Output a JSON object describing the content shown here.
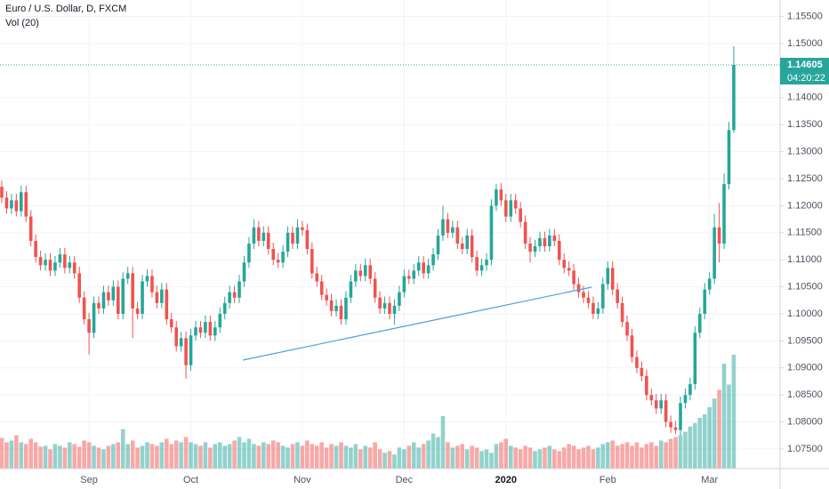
{
  "chart_data": {
    "type": "candlestick",
    "title": "Euro / U.S. Dollar, D, FXCM",
    "indicator": "Vol (20)",
    "countdown": "04:20:22",
    "last_price": 1.14605,
    "up_color": "#26a69a",
    "down_color": "#ef5350",
    "grid": true,
    "ylim": [
      1.07138,
      1.15806
    ],
    "yticks": [
      {
        "value": 1.075,
        "label": "1.07500"
      },
      {
        "value": 1.08,
        "label": "1.08000"
      },
      {
        "value": 1.085,
        "label": "1.08500"
      },
      {
        "value": 1.09,
        "label": "1.09000"
      },
      {
        "value": 1.095,
        "label": "1.09500"
      },
      {
        "value": 1.1,
        "label": "1.10000"
      },
      {
        "value": 1.105,
        "label": "1.10500"
      },
      {
        "value": 1.11,
        "label": "1.11000"
      },
      {
        "value": 1.115,
        "label": "1.11500"
      },
      {
        "value": 1.12,
        "label": "1.12000"
      },
      {
        "value": 1.125,
        "label": "1.12500"
      },
      {
        "value": 1.13,
        "label": "1.13000"
      },
      {
        "value": 1.135,
        "label": "1.13500"
      },
      {
        "value": 1.14,
        "label": "1.14000"
      },
      {
        "value": 1.15,
        "label": "1.15000"
      },
      {
        "value": 1.155,
        "label": "1.15500"
      }
    ],
    "categories": [
      null,
      null,
      null,
      null,
      null,
      null,
      null,
      null,
      null,
      null,
      null,
      null,
      null,
      null,
      null,
      null,
      null,
      null,
      "Sep",
      null,
      null,
      null,
      null,
      null,
      null,
      null,
      null,
      null,
      null,
      null,
      null,
      null,
      null,
      null,
      null,
      null,
      null,
      null,
      null,
      "Oct",
      null,
      null,
      null,
      null,
      null,
      null,
      null,
      null,
      null,
      null,
      null,
      null,
      null,
      null,
      null,
      null,
      null,
      null,
      null,
      null,
      null,
      null,
      "Nov",
      null,
      null,
      null,
      null,
      null,
      null,
      null,
      null,
      null,
      null,
      null,
      null,
      null,
      null,
      null,
      null,
      null,
      null,
      null,
      null,
      "Dec",
      null,
      null,
      null,
      null,
      null,
      null,
      null,
      null,
      null,
      null,
      null,
      null,
      null,
      null,
      null,
      null,
      null,
      null,
      null,
      null,
      "2020",
      null,
      null,
      null,
      null,
      null,
      null,
      null,
      null,
      null,
      null,
      null,
      null,
      null,
      null,
      null,
      null,
      null,
      null,
      null,
      null,
      "Feb",
      null,
      null,
      null,
      null,
      null,
      null,
      null,
      null,
      null,
      null,
      null,
      null,
      null,
      null,
      null,
      null,
      null,
      null,
      null,
      null,
      "Mar",
      null,
      null,
      null,
      null,
      null
    ],
    "open": [
      1.1235,
      1.1215,
      1.1195,
      1.121,
      1.119,
      1.1225,
      1.118,
      1.1135,
      1.1105,
      1.109,
      1.11,
      1.108,
      1.1095,
      1.111,
      1.1085,
      1.1095,
      1.1075,
      1.103,
      1.099,
      1.0965,
      1.102,
      1.101,
      1.104,
      1.1025,
      1.105,
      1.1,
      1.1065,
      1.1075,
      1.101,
      1.1,
      1.106,
      1.107,
      1.104,
      1.102,
      1.1045,
      1.099,
      1.0975,
      1.094,
      1.0955,
      1.0905,
      1.096,
      1.0975,
      1.0965,
      1.0985,
      1.096,
      1.0975,
      1.1,
      1.102,
      1.104,
      1.103,
      1.106,
      1.1095,
      1.113,
      1.116,
      1.1135,
      1.115,
      1.112,
      1.11,
      1.1095,
      1.1115,
      1.115,
      1.113,
      1.116,
      1.1155,
      1.112,
      1.1075,
      1.106,
      1.1035,
      1.1025,
      1.1005,
      1.1015,
      1.099,
      1.103,
      1.106,
      1.108,
      1.107,
      1.109,
      1.1065,
      1.103,
      1.101,
      1.102,
      1.1,
      1.1015,
      1.104,
      1.107,
      1.1065,
      1.108,
      1.1095,
      1.1075,
      1.109,
      1.111,
      1.1145,
      1.1175,
      1.115,
      1.116,
      1.113,
      1.112,
      1.1145,
      1.1105,
      1.108,
      1.109,
      1.11,
      1.12,
      1.123,
      1.121,
      1.118,
      1.121,
      1.1195,
      1.117,
      1.113,
      1.1115,
      1.1125,
      1.114,
      1.1125,
      1.1145,
      1.1135,
      1.11,
      1.1085,
      1.108,
      1.1055,
      1.104,
      1.103,
      1.102,
      1.1,
      1.101,
      1.1055,
      1.1085,
      1.1045,
      1.102,
      1.0985,
      1.096,
      1.092,
      1.09,
      1.0885,
      1.085,
      1.084,
      1.0825,
      1.084,
      1.08,
      1.079,
      1.0785,
      1.0835,
      1.085,
      1.087,
      1.0965,
      1.1,
      1.1045,
      1.1065,
      1.116,
      1.113,
      1.124,
      1.134
    ],
    "high": [
      1.1247,
      1.1227,
      1.1222,
      1.1222,
      1.1237,
      1.1237,
      1.1192,
      1.1147,
      1.1117,
      1.1112,
      1.1112,
      1.1107,
      1.1122,
      1.1122,
      1.1107,
      1.1107,
      1.1087,
      1.1042,
      1.1002,
      1.1032,
      1.1032,
      1.1052,
      1.1052,
      1.1062,
      1.1062,
      1.1077,
      1.1087,
      1.1087,
      1.1022,
      1.1072,
      1.1082,
      1.1082,
      1.1052,
      1.1057,
      1.1057,
      1.1002,
      1.0987,
      1.0967,
      1.0967,
      1.0972,
      1.0987,
      1.0987,
      1.0997,
      1.0997,
      1.0987,
      1.1012,
      1.1032,
      1.1052,
      1.1052,
      1.1072,
      1.1107,
      1.1142,
      1.1175,
      1.1172,
      1.1162,
      1.1162,
      1.1132,
      1.1112,
      1.1127,
      1.1162,
      1.1162,
      1.1175,
      1.1172,
      1.1167,
      1.1132,
      1.1087,
      1.1072,
      1.1047,
      1.1037,
      1.1027,
      1.1027,
      1.1042,
      1.1072,
      1.1092,
      1.1092,
      1.1102,
      1.1102,
      1.1077,
      1.1042,
      1.1032,
      1.1032,
      1.1027,
      1.1052,
      1.1082,
      1.1082,
      1.1092,
      1.1107,
      1.1107,
      1.1102,
      1.1122,
      1.1157,
      1.12,
      1.1187,
      1.1172,
      1.1172,
      1.1142,
      1.1157,
      1.1157,
      1.1117,
      1.1102,
      1.1112,
      1.1212,
      1.124,
      1.1242,
      1.1222,
      1.1222,
      1.1222,
      1.1207,
      1.1182,
      1.1142,
      1.1137,
      1.1152,
      1.1152,
      1.1157,
      1.1157,
      1.1147,
      1.1112,
      1.1097,
      1.1092,
      1.1067,
      1.1052,
      1.1042,
      1.1032,
      1.1022,
      1.1067,
      1.1097,
      1.1097,
      1.1057,
      1.1032,
      1.0997,
      1.0972,
      1.0932,
      1.0912,
      1.0897,
      1.0862,
      1.0852,
      1.0852,
      1.0852,
      1.0812,
      1.0802,
      1.0847,
      1.0862,
      1.0882,
      1.0977,
      1.1012,
      1.1057,
      1.1077,
      1.1185,
      1.1205,
      1.126,
      1.1355,
      1.1495
    ],
    "low": [
      1.1205,
      1.1185,
      1.1185,
      1.118,
      1.118,
      1.117,
      1.1125,
      1.1095,
      1.108,
      1.108,
      1.107,
      1.107,
      1.1085,
      1.1075,
      1.1075,
      1.1065,
      1.102,
      1.098,
      1.0925,
      1.0955,
      1.1,
      1.1,
      1.1015,
      1.1015,
      1.099,
      1.099,
      1.1055,
      1.0955,
      1.099,
      1.099,
      1.105,
      1.103,
      1.101,
      1.101,
      1.098,
      1.0965,
      1.093,
      1.093,
      1.088,
      1.0895,
      1.095,
      1.0955,
      1.0955,
      1.095,
      1.095,
      1.0965,
      1.099,
      1.101,
      1.102,
      1.102,
      1.105,
      1.1085,
      1.112,
      1.1125,
      1.1125,
      1.111,
      1.109,
      1.1085,
      1.1085,
      1.1105,
      1.112,
      1.112,
      1.1145,
      1.111,
      1.1065,
      1.105,
      1.1025,
      1.1015,
      1.0995,
      1.0995,
      1.098,
      1.098,
      1.102,
      1.105,
      1.106,
      1.106,
      1.1055,
      1.102,
      1.1,
      1.1,
      1.099,
      1.098,
      1.1005,
      1.103,
      1.1055,
      1.1055,
      1.107,
      1.1065,
      1.1065,
      1.108,
      1.11,
      1.1135,
      1.114,
      1.114,
      1.112,
      1.111,
      1.111,
      1.1095,
      1.107,
      1.107,
      1.108,
      1.109,
      1.119,
      1.12,
      1.117,
      1.117,
      1.1185,
      1.116,
      1.112,
      1.1095,
      1.1105,
      1.1115,
      1.1115,
      1.1115,
      1.1125,
      1.109,
      1.1075,
      1.107,
      1.1045,
      1.103,
      1.102,
      1.101,
      1.099,
      1.099,
      1.1,
      1.1045,
      1.1035,
      1.101,
      1.0975,
      1.095,
      1.091,
      1.089,
      1.0875,
      1.084,
      1.083,
      1.0815,
      1.0815,
      1.079,
      1.078,
      1.0778,
      1.0775,
      1.0825,
      1.084,
      1.086,
      1.0955,
      1.099,
      1.1035,
      1.1055,
      1.1095,
      1.112,
      1.123,
      1.1335
    ],
    "close": [
      1.1215,
      1.1195,
      1.121,
      1.119,
      1.1225,
      1.118,
      1.1135,
      1.1105,
      1.109,
      1.11,
      1.108,
      1.1095,
      1.111,
      1.1085,
      1.1095,
      1.1075,
      1.103,
      1.099,
      1.0965,
      1.102,
      1.101,
      1.104,
      1.1025,
      1.105,
      1.1,
      1.1065,
      1.1075,
      1.101,
      1.1,
      1.106,
      1.107,
      1.104,
      1.102,
      1.1045,
      1.099,
      1.0975,
      1.094,
      1.0955,
      1.0905,
      1.096,
      1.0975,
      1.0965,
      1.0985,
      1.096,
      1.0975,
      1.1,
      1.102,
      1.104,
      1.103,
      1.106,
      1.1095,
      1.113,
      1.116,
      1.1135,
      1.115,
      1.112,
      1.11,
      1.1095,
      1.1115,
      1.115,
      1.113,
      1.116,
      1.1155,
      1.112,
      1.1075,
      1.106,
      1.1035,
      1.1025,
      1.1005,
      1.1015,
      1.099,
      1.103,
      1.106,
      1.108,
      1.107,
      1.109,
      1.1065,
      1.103,
      1.101,
      1.102,
      1.1,
      1.1015,
      1.104,
      1.107,
      1.1065,
      1.108,
      1.1095,
      1.1075,
      1.109,
      1.111,
      1.1145,
      1.1175,
      1.115,
      1.116,
      1.113,
      1.112,
      1.1145,
      1.1105,
      1.108,
      1.109,
      1.11,
      1.12,
      1.123,
      1.121,
      1.118,
      1.121,
      1.1195,
      1.117,
      1.113,
      1.1115,
      1.1125,
      1.114,
      1.1125,
      1.1145,
      1.1135,
      1.11,
      1.1085,
      1.108,
      1.1055,
      1.104,
      1.103,
      1.102,
      1.1,
      1.101,
      1.1055,
      1.1085,
      1.1045,
      1.102,
      1.0985,
      1.096,
      1.092,
      1.09,
      1.0885,
      1.085,
      1.084,
      1.0825,
      1.084,
      1.08,
      1.079,
      1.0785,
      1.0835,
      1.085,
      1.087,
      1.0965,
      1.1,
      1.1045,
      1.1065,
      1.116,
      1.113,
      1.124,
      1.134,
      1.14605
    ],
    "volume": [
      35,
      30,
      32,
      38,
      30,
      28,
      34,
      30,
      25,
      26,
      22,
      28,
      26,
      24,
      30,
      28,
      25,
      32,
      30,
      26,
      24,
      22,
      26,
      28,
      30,
      45,
      28,
      32,
      24,
      26,
      30,
      28,
      26,
      30,
      34,
      28,
      32,
      30,
      36,
      30,
      28,
      26,
      30,
      24,
      28,
      30,
      26,
      28,
      32,
      36,
      30,
      34,
      28,
      26,
      30,
      28,
      32,
      30,
      26,
      24,
      28,
      30,
      26,
      32,
      28,
      26,
      30,
      24,
      28,
      26,
      30,
      26,
      24,
      28,
      22,
      26,
      24,
      30,
      22,
      18,
      20,
      16,
      24,
      22,
      26,
      30,
      24,
      28,
      32,
      40,
      36,
      60,
      30,
      24,
      26,
      28,
      22,
      26,
      24,
      20,
      22,
      18,
      28,
      30,
      34,
      26,
      24,
      22,
      26,
      24,
      20,
      22,
      24,
      26,
      22,
      20,
      24,
      28,
      26,
      22,
      24,
      26,
      22,
      24,
      28,
      30,
      32,
      26,
      28,
      30,
      26,
      30,
      24,
      28,
      30,
      26,
      32,
      30,
      34,
      36,
      38,
      42,
      48,
      52,
      58,
      62,
      70,
      80,
      90,
      120,
      96,
      130
    ]
  }
}
